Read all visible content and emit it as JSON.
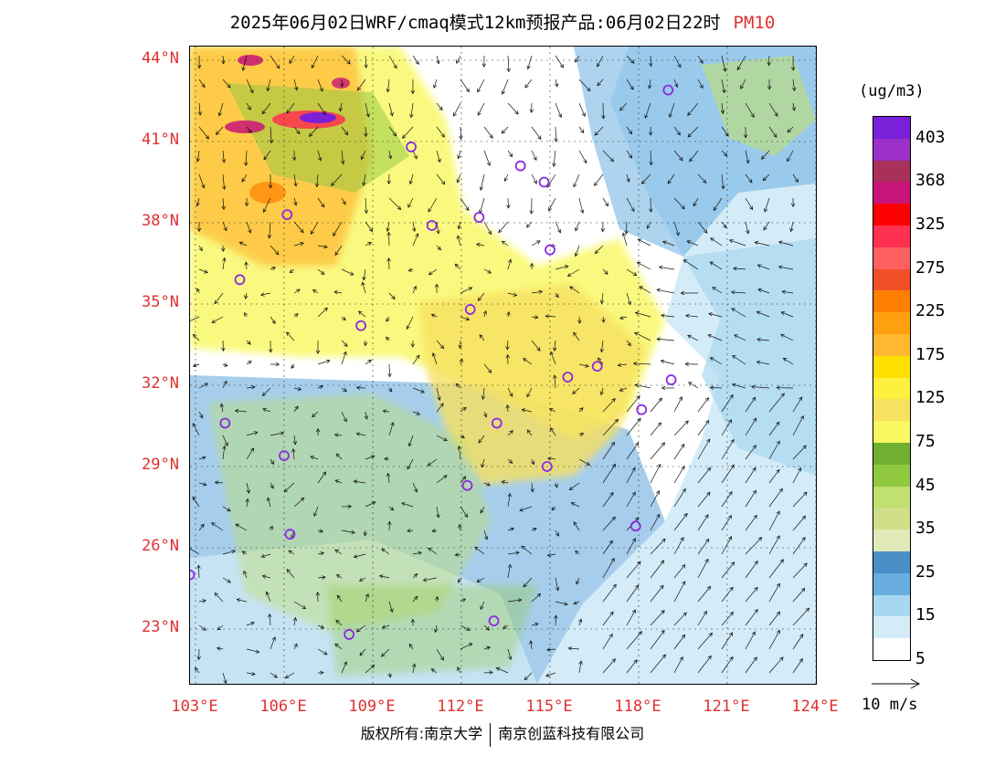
{
  "title": {
    "main": "2025年06月02日WRF/cmaq模式12km预报产品:06月02日22时",
    "pollutant": "PM10"
  },
  "axes": {
    "lat_labels": [
      "44°N",
      "41°N",
      "38°N",
      "35°N",
      "32°N",
      "29°N",
      "26°N",
      "23°N"
    ],
    "lon_labels": [
      "103°E",
      "106°E",
      "109°E",
      "112°E",
      "115°E",
      "118°E",
      "121°E",
      "124°E"
    ]
  },
  "legend": {
    "unit": "(ug/m3)",
    "labels": [
      "403",
      "368",
      "325",
      "275",
      "225",
      "175",
      "125",
      "75",
      "45",
      "35",
      "25",
      "15",
      "5"
    ],
    "colors": [
      "#7a20d8",
      "#9a30c8",
      "#a8305a",
      "#c81478",
      "#ff0000",
      "#ff3050",
      "#ff6060",
      "#f05028",
      "#ff8000",
      "#ffa010",
      "#ffb830",
      "#ffe000",
      "#fff040",
      "#f8e060",
      "#f8f860",
      "#70b030",
      "#90c840",
      "#c0e070",
      "#d0e088",
      "#e0eab8",
      "#4a90c8",
      "#6aaee0",
      "#a8d8f0",
      "#d4ecf8",
      "#ffffff"
    ],
    "wind_reference": "10 m/s"
  },
  "cities": [
    {
      "name": "c1",
      "lon": 119.0,
      "lat": 42.9
    },
    {
      "name": "c2",
      "lon": 110.3,
      "lat": 40.8
    },
    {
      "name": "c3",
      "lon": 114.0,
      "lat": 40.1
    },
    {
      "name": "c4",
      "lon": 114.8,
      "lat": 39.5
    },
    {
      "name": "c5",
      "lon": 106.1,
      "lat": 38.3
    },
    {
      "name": "c6",
      "lon": 111.0,
      "lat": 37.9
    },
    {
      "name": "c7",
      "lon": 112.6,
      "lat": 38.2
    },
    {
      "name": "c8",
      "lon": 115.0,
      "lat": 37.0
    },
    {
      "name": "c9",
      "lon": 104.5,
      "lat": 35.9
    },
    {
      "name": "c10",
      "lon": 112.3,
      "lat": 34.8
    },
    {
      "name": "c11",
      "lon": 108.6,
      "lat": 34.2
    },
    {
      "name": "c12",
      "lon": 116.6,
      "lat": 32.7
    },
    {
      "name": "c13",
      "lon": 115.6,
      "lat": 32.3
    },
    {
      "name": "c14",
      "lon": 119.1,
      "lat": 32.2
    },
    {
      "name": "c15",
      "lon": 118.1,
      "lat": 31.1
    },
    {
      "name": "c16",
      "lon": 113.2,
      "lat": 30.6
    },
    {
      "name": "c17",
      "lon": 104.0,
      "lat": 30.6
    },
    {
      "name": "c18",
      "lon": 106.0,
      "lat": 29.4
    },
    {
      "name": "c19",
      "lon": 114.9,
      "lat": 29.0
    },
    {
      "name": "c20",
      "lon": 112.2,
      "lat": 28.3
    },
    {
      "name": "c21",
      "lon": 117.9,
      "lat": 26.8
    },
    {
      "name": "c22",
      "lon": 106.2,
      "lat": 26.5
    },
    {
      "name": "c23",
      "lon": 102.8,
      "lat": 25.0
    },
    {
      "name": "c24",
      "lon": 108.2,
      "lat": 22.8
    },
    {
      "name": "c25",
      "lon": 113.1,
      "lat": 23.3
    }
  ],
  "copyright": {
    "left": "版权所有:南京大学",
    "right": "南京创蓝科技有限公司"
  }
}
